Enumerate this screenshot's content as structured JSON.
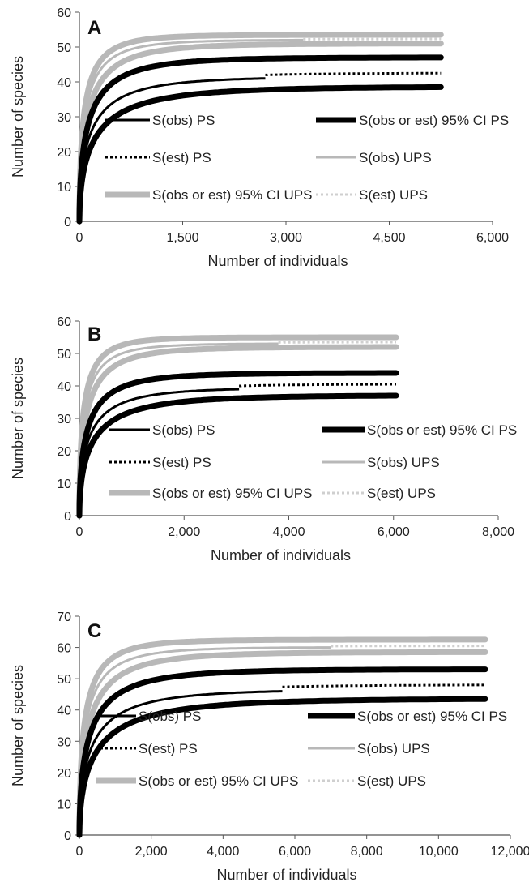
{
  "chart_data": [
    {
      "type": "line",
      "panel_label": "A",
      "xlabel": "Number of individuals",
      "ylabel": "Number of species",
      "xlim": [
        0,
        6000
      ],
      "ylim": [
        0,
        60
      ],
      "xticks": [
        "0",
        "1,500",
        "3,000",
        "4,500",
        "6,000"
      ],
      "yticks": [
        "0",
        "10",
        "20",
        "30",
        "40",
        "50",
        "60"
      ],
      "grid": false,
      "series": [
        {
          "name": "S(obs) PS",
          "x_end": 2700,
          "y_end": 41
        },
        {
          "name": "S(obs or est) 95% CI PS",
          "x_end": 5250,
          "upper_end": 47,
          "lower_end": 38.5
        },
        {
          "name": "S(est) PS",
          "x_start": 2700,
          "x_end": 5250,
          "y_end": 42.5
        },
        {
          "name": "S(obs) UPS",
          "x_end": 3250,
          "y_end": 52
        },
        {
          "name": "S(obs or est) 95% CI UPS",
          "x_end": 5250,
          "upper_end": 53.5,
          "lower_end": 51
        },
        {
          "name": "S(est)  UPS",
          "x_start": 3250,
          "x_end": 5250,
          "y_end": 52.3
        }
      ]
    },
    {
      "type": "line",
      "panel_label": "B",
      "xlabel": "Number of individuals",
      "ylabel": "Number of species",
      "xlim": [
        0,
        8000
      ],
      "ylim": [
        0,
        60
      ],
      "xticks": [
        "0",
        "2,000",
        "4,000",
        "6,000",
        "8,000"
      ],
      "yticks": [
        "0",
        "10",
        "20",
        "30",
        "40",
        "50",
        "60"
      ],
      "grid": false,
      "series": [
        {
          "name": "S(obs) PS",
          "x_end": 3050,
          "y_end": 39
        },
        {
          "name": "S(obs or est) 95% CI PS",
          "x_end": 6050,
          "upper_end": 44,
          "lower_end": 37
        },
        {
          "name": "S(est) PS",
          "x_start": 3050,
          "x_end": 6050,
          "y_end": 40.5
        },
        {
          "name": "S(obs) UPS",
          "x_end": 3800,
          "y_end": 53
        },
        {
          "name": "S(obs or est) 95% CI UPS",
          "x_end": 6050,
          "upper_end": 55,
          "lower_end": 52
        },
        {
          "name": "S(est) UPS",
          "x_start": 3800,
          "x_end": 6050,
          "y_end": 53.5
        }
      ]
    },
    {
      "type": "line",
      "panel_label": "C",
      "xlabel": "Number of individuals",
      "ylabel": "Number of species",
      "xlim": [
        0,
        12000
      ],
      "ylim": [
        0,
        70
      ],
      "xticks": [
        "0",
        "2,000",
        "4,000",
        "6,000",
        "8,000",
        "10,000",
        "12,000"
      ],
      "yticks": [
        "0",
        "10",
        "20",
        "30",
        "40",
        "50",
        "60",
        "70"
      ],
      "grid": false,
      "series": [
        {
          "name": "S(obs) PS",
          "x_end": 5650,
          "y_end": 46
        },
        {
          "name": "S(obs or est) 95% CI PS",
          "x_end": 11300,
          "upper_end": 53,
          "lower_end": 43.5
        },
        {
          "name": "S(est) PS",
          "x_start": 5650,
          "x_end": 11300,
          "y_end": 48
        },
        {
          "name": "S(obs) UPS",
          "x_end": 7000,
          "y_end": 60
        },
        {
          "name": "S(obs or est) 95% CI UPS",
          "x_end": 11300,
          "upper_end": 62.5,
          "lower_end": 58.5
        },
        {
          "name": "S(est) UPS",
          "x_start": 7000,
          "x_end": 11300,
          "y_end": 60.5
        }
      ]
    }
  ],
  "legend_styles": {
    "S(obs) PS": {
      "color": "#000000",
      "width": 3,
      "dash": ""
    },
    "S(obs or est) 95% CI PS": {
      "color": "#000000",
      "width": 7,
      "dash": ""
    },
    "S(est) PS": {
      "color": "#000000",
      "width": 3,
      "dash": "3,3"
    },
    "S(obs) UPS": {
      "color": "#b8b8b8",
      "width": 3,
      "dash": ""
    },
    "S(obs or est) 95% CI UPS": {
      "color": "#b8b8b8",
      "width": 7,
      "dash": ""
    },
    "S(est) UPS": {
      "color": "#cfcfcf",
      "width": 3,
      "dash": "3,3"
    }
  }
}
